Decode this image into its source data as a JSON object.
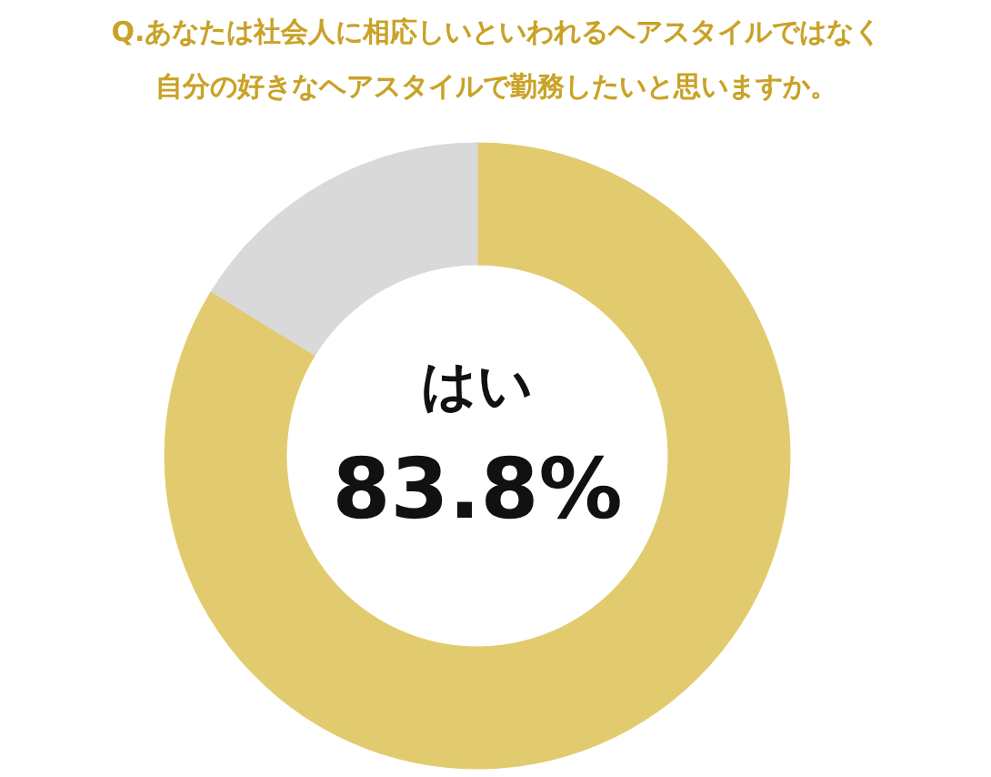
{
  "chart_data": {
    "type": "donut",
    "title": "Q.あなたは社会人に相応しいといわれるヘアスタイルではなく",
    "subtitle": "自分の好きなヘアスタイルで勤務したいと思いますか。",
    "categories": [
      "はい",
      null
    ],
    "values": [
      83.8,
      16.2
    ],
    "colors": [
      "#e2cb6e",
      "#d9d9d9"
    ],
    "value_labels": [
      "83.8%",
      null
    ],
    "legend": false
  }
}
